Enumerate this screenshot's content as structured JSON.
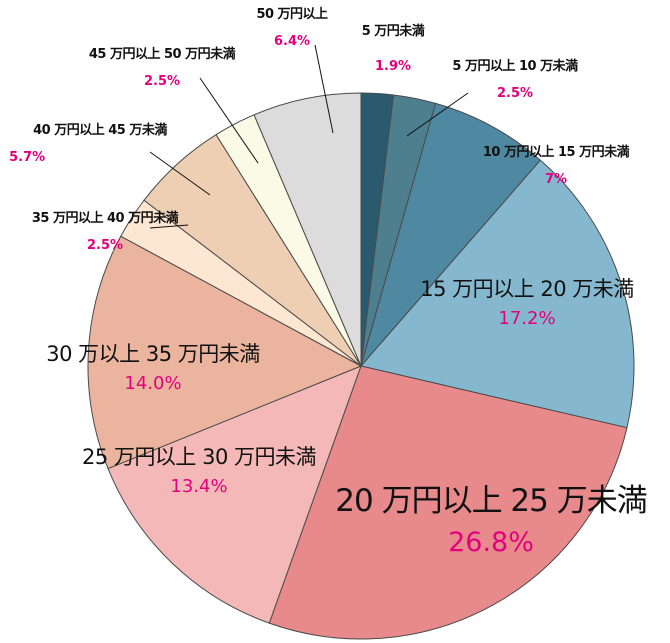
{
  "chart_data": {
    "type": "pie",
    "title": "",
    "colors": [
      "#2b5a6e",
      "#4e7f8f",
      "#4f88a1",
      "#85b8cf",
      "#e88a8b",
      "#f3b8b7",
      "#eab49e",
      "#fde6d2",
      "#efcfb4",
      "#fafae6",
      "#dcdcdc"
    ],
    "slices": [
      {
        "category": "5 万円未満",
        "value": 1.9,
        "label": "1.9%"
      },
      {
        "category": "5 万円以上 10 万未満",
        "value": 2.5,
        "label": "2.5%"
      },
      {
        "category": "10 万円以上 15 万円未満",
        "value": 7,
        "label": "7%"
      },
      {
        "category": "15 万円以上 20 万未満",
        "value": 17.2,
        "label": "17.2%"
      },
      {
        "category": "20 万円以上 25 万未満",
        "value": 26.8,
        "label": "26.8%"
      },
      {
        "category": "25 万円以上 30 万円未満",
        "value": 13.4,
        "label": "13.4%"
      },
      {
        "category": "30 万以上 35 万円未満",
        "value": 14.0,
        "label": "14.0%"
      },
      {
        "category": "35 万円以上 40 万円未満",
        "value": 2.5,
        "label": "2.5%"
      },
      {
        "category": "40 万円以上 45 万未満",
        "value": 5.7,
        "label": "5.7%"
      },
      {
        "category": "45 万円以上 50 万円未満",
        "value": 2.5,
        "label": "2.5%"
      },
      {
        "category": "50 万円以上",
        "value": 6.4,
        "label": "6.4%"
      }
    ]
  }
}
